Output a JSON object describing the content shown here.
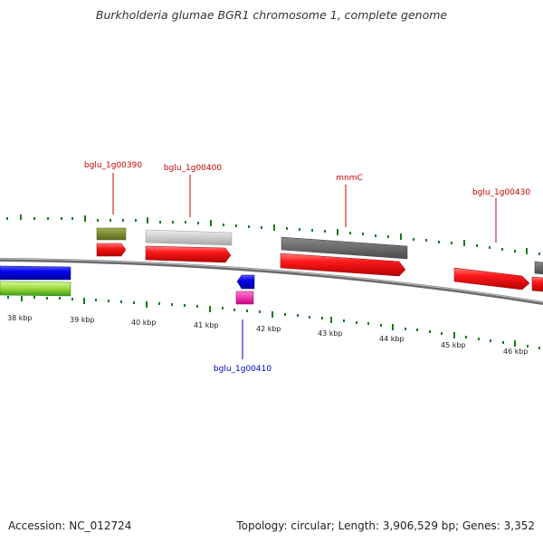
{
  "header": {
    "title": "Burkholderia glumae BGR1 chromosome 1, complete genome"
  },
  "footer": {
    "accession": "Accession: NC_012724",
    "topology": "Topology: circular; Length: 3,906,529 bp; Genes: 3,352"
  },
  "ruler": {
    "labels": [
      "38 kbp",
      "39 kbp",
      "40 kbp",
      "41 kbp",
      "42 kbp",
      "43 kbp",
      "44 kbp",
      "45 kbp",
      "46 kbp"
    ]
  },
  "gene_labels": {
    "g390": "bglu_1g00390",
    "g400": "bglu_1g00400",
    "mnmC": "mnmC",
    "g430": "bglu_1g00430",
    "g410": "bglu_1g00410"
  },
  "colors": {
    "forward_gene": "#ff0000",
    "reverse_gene_blue": "#0000ee",
    "reverse_gene_magenta": "#ee1199",
    "label_forward": "#cc0000",
    "label_reverse": "#0000cc",
    "ticks": "#1a7a1a",
    "backbone": "#808080"
  }
}
